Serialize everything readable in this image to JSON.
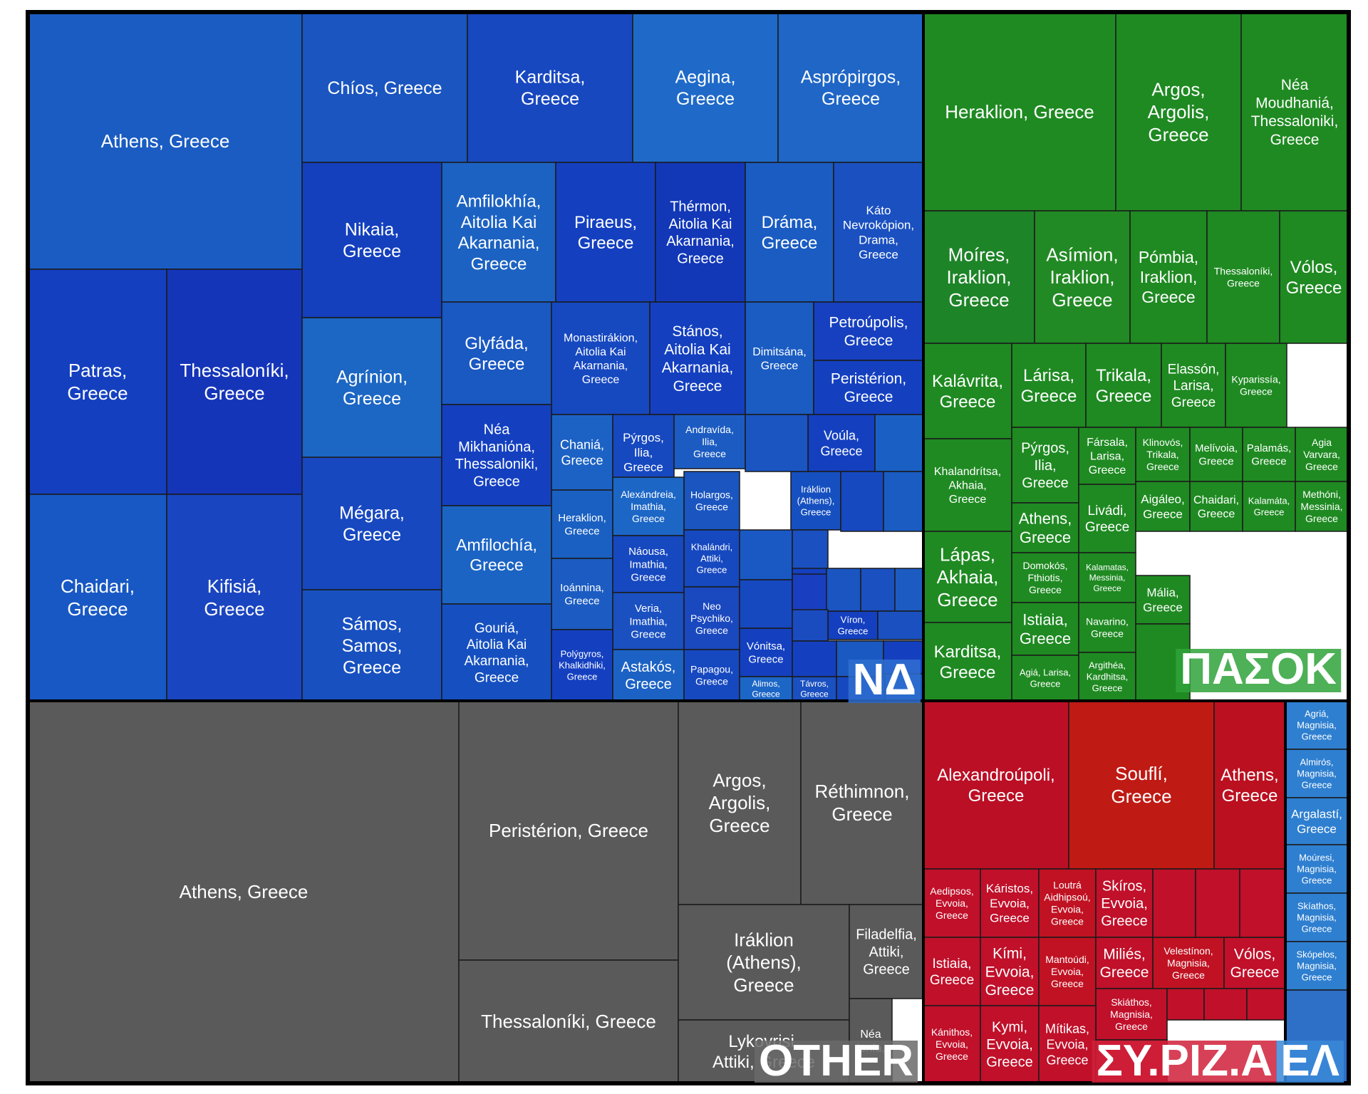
{
  "chart_data": {
    "type": "treemap",
    "groups": [
      {
        "name": "ΝΔ",
        "color": "#1f4fbf",
        "label_bg": "#2f6fd0",
        "tiles": [
          {
            "label": "Athens, Greece",
            "color": "#1a5cc2"
          },
          {
            "label": "Patras,\nGreece",
            "color": "#1440c0"
          },
          {
            "label": "Thessaloníki,\nGreece",
            "color": "#1535b8"
          },
          {
            "label": "Chaidari,\nGreece",
            "color": "#1858c4"
          },
          {
            "label": "Kifisiá,\nGreece",
            "color": "#1a45c0"
          },
          {
            "label": "Chíos, Greece",
            "color": "#1a55c0"
          },
          {
            "label": "Karditsa,\nGreece",
            "color": "#1848c0"
          },
          {
            "label": "Aegina,\nGreece",
            "color": "#1f6ac8"
          },
          {
            "label": "Asprópirgos,\nGreece",
            "color": "#1f66c6"
          },
          {
            "label": "Nikaia,\nGreece",
            "color": "#1440be"
          },
          {
            "label": "Agrínion,\nGreece",
            "color": "#1c66c4"
          },
          {
            "label": "Mégara,\nGreece",
            "color": "#1848c0"
          },
          {
            "label": "Sámos,\nSamos,\nGreece",
            "color": "#1850c0"
          },
          {
            "label": "Amfilokhía,\nAitolia Kai\nAkarnania,\nGreece",
            "color": "#1c62c2"
          },
          {
            "label": "Piraeus,\nGreece",
            "color": "#1440c0"
          },
          {
            "label": "Thérmon,\nAitolia Kai\nAkarnania,\nGreece",
            "color": "#1238b8"
          },
          {
            "label": "Dráma,\nGreece",
            "color": "#1a5cc2"
          },
          {
            "label": "Káto\nNevrokópion,\nDrama,\nGreece",
            "color": "#1a50c0"
          },
          {
            "label": "Glyfáda,\nGreece",
            "color": "#1a58c2"
          },
          {
            "label": "Monastirákion,\nAitolia Kai\nAkarnania,\nGreece",
            "color": "#1648c0"
          },
          {
            "label": "Stános,\nAitolia Kai\nAkarnania,\nGreece",
            "color": "#1440bf"
          },
          {
            "label": "Dimitsána,\nGreece",
            "color": "#1a5cc2"
          },
          {
            "label": "Petroúpolis,\nGreece",
            "color": "#1640bf"
          },
          {
            "label": "Peristérion,\nGreece",
            "color": "#1440c0"
          },
          {
            "label": "Néa\nMikhaniόna,\nThessaloniki,\nGreece",
            "color": "#1440c0"
          },
          {
            "label": "Chaniá,\nGreece",
            "color": "#1c62c4"
          },
          {
            "label": "Pýrgos,\nIlia,\nGreece",
            "color": "#1648c0"
          },
          {
            "label": "Andravída,\nIlia,\nGreece",
            "color": "#1c5cc2"
          },
          {
            "label": "Voúla,\nGreece",
            "color": "#1440c0"
          },
          {
            "label": "Amfilochía,\nGreece",
            "color": "#1c64c4"
          },
          {
            "label": "Heraklion,\nGreece",
            "color": "#1a60c2"
          },
          {
            "label": "Alexándreia,\nImathia,\nGreece",
            "color": "#1c66c6"
          },
          {
            "label": "Holargos,\nGreece",
            "color": "#1a55c0"
          },
          {
            "label": "Iráklion\n(Athens),\nGreece",
            "color": "#1650c0"
          },
          {
            "label": "Ioánnina,\nGreece",
            "color": "#1c5cc2"
          },
          {
            "label": "Náousa,\nImathia,\nGreece",
            "color": "#1648c0"
          },
          {
            "label": "Khalándri,\nAttiki,\nGreece",
            "color": "#1648c0"
          },
          {
            "label": "Gouriá,\nAitolia Kai\nAkarnania,\nGreece",
            "color": "#1650c0"
          },
          {
            "label": "Veria,\nImathia,\nGreece",
            "color": "#1a50c0"
          },
          {
            "label": "Neo\nPsychiko,\nGreece",
            "color": "#1a48bf"
          },
          {
            "label": "Polýgyros,\nKhalkidhiki,\nGreece",
            "color": "#1440c0"
          },
          {
            "label": "Astakós,\nGreece",
            "color": "#1c62c4"
          },
          {
            "label": "Papagou,\nGreece",
            "color": "#1648c0"
          },
          {
            "label": "Vónitsa,\nGreece",
            "color": "#1440c0"
          },
          {
            "label": "Víron,\nGreece",
            "color": "#1440c0"
          },
          {
            "label": "Alimos,\nGreece",
            "color": "#1c66c6"
          },
          {
            "label": "Távros,\nGreece",
            "color": "#1a50c0"
          },
          {
            "label": "",
            "color": "#1a55c2"
          },
          {
            "label": "",
            "color": "#1a60c4"
          },
          {
            "label": "",
            "color": "#1648c0"
          },
          {
            "label": "",
            "color": "#1a5cc2"
          },
          {
            "label": "",
            "color": "#1a58c4"
          },
          {
            "label": "",
            "color": "#1648c0"
          },
          {
            "label": "",
            "color": "#1a50c0"
          },
          {
            "label": "",
            "color": "#1440c0"
          },
          {
            "label": "",
            "color": "#1a3ec0"
          },
          {
            "label": "",
            "color": "#1a55c2"
          },
          {
            "label": "",
            "color": "#1a50c0"
          },
          {
            "label": "",
            "color": "#1c5cc2"
          },
          {
            "label": "",
            "color": "#1a4cc0"
          },
          {
            "label": "",
            "color": "#1a50c0"
          },
          {
            "label": "",
            "color": "#1440c0"
          },
          {
            "label": "",
            "color": "#1a58c2"
          },
          {
            "label": "",
            "color": "#1440c0"
          },
          {
            "label": "",
            "color": "#1648c0"
          },
          {
            "label": "",
            "color": "#1a58c2"
          }
        ]
      },
      {
        "name": "ΠΑΣΟΚ",
        "color": "#1e8b2a",
        "label_bg": "#2fa23a",
        "tiles": [
          {
            "label": "Heraklion, Greece",
            "color": "#1f8a22"
          },
          {
            "label": "Argos,\nArgolis,\nGreece",
            "color": "#1f8a22"
          },
          {
            "label": "Néa\nMoudhaniá,\nThessaloniki,\nGreece",
            "color": "#1f8a22"
          },
          {
            "label": "Moíres,\nIraklion,\nGreece",
            "color": "#1e8428"
          },
          {
            "label": "Asímion,\nIraklion,\nGreece",
            "color": "#228a24"
          },
          {
            "label": "Pómbia,\nIraklion,\nGreece",
            "color": "#1f8a22"
          },
          {
            "label": "Thessaloníki,\nGreece",
            "color": "#1f8a22"
          },
          {
            "label": "Vólos,\nGreece",
            "color": "#1f8a22"
          },
          {
            "label": "Kalávrita,\nGreece",
            "color": "#1f8a22"
          },
          {
            "label": "Lárisa,\nGreece",
            "color": "#1f8a22"
          },
          {
            "label": "Trikala,\nGreece",
            "color": "#1f8a22"
          },
          {
            "label": "Elassón,\nLarisa,\nGreece",
            "color": "#1f8a22"
          },
          {
            "label": "Kyparissía,\nGreece",
            "color": "#1f8a22"
          },
          {
            "label": "Khalandrítsa,\nAkhaia,\nGreece",
            "color": "#1f8a22"
          },
          {
            "label": "Pýrgos,\nIlia,\nGreece",
            "color": "#1f8a22"
          },
          {
            "label": "Fársala,\nLarisa,\nGreece",
            "color": "#1f8a22"
          },
          {
            "label": "Klinovós,\nTrikala,\nGreece",
            "color": "#1f8a22"
          },
          {
            "label": "Melívoia,\nGreece",
            "color": "#1f8a22"
          },
          {
            "label": "Palamás,\nGreece",
            "color": "#1f8a22"
          },
          {
            "label": "Agia\nVarvara,\nGreece",
            "color": "#1f8a22"
          },
          {
            "label": "Athens,\nGreece",
            "color": "#1f8a22"
          },
          {
            "label": "Livádi,\nGreece",
            "color": "#1f8a22"
          },
          {
            "label": "Aigáleo,\nGreece",
            "color": "#1f8a22"
          },
          {
            "label": "Chaidari,\nGreece",
            "color": "#1f8a22"
          },
          {
            "label": "Kalamáta,\nGreece",
            "color": "#1f8a22"
          },
          {
            "label": "Methóni,\nMessinia,\nGreece",
            "color": "#1f8a22"
          },
          {
            "label": "Lápas,\nAkhaia,\nGreece",
            "color": "#1f8a22"
          },
          {
            "label": "Domokós,\nFthiotis,\nGreece",
            "color": "#1f8a22"
          },
          {
            "label": "Kalamatas,\nMessinia,\nGreece",
            "color": "#1f8a22"
          },
          {
            "label": "Istiaia,\nGreece",
            "color": "#1f8a22"
          },
          {
            "label": "Navarino,\nGreece",
            "color": "#1f8a22"
          },
          {
            "label": "Mália,\nGreece",
            "color": "#1f8a22"
          },
          {
            "label": "Karditsa,\nGreece",
            "color": "#1f8a22"
          },
          {
            "label": "Agiá, Larisa,\nGreece",
            "color": "#1f8a22"
          },
          {
            "label": "Argithéa,\nKardhitsa,\nGreece",
            "color": "#1f8a22"
          },
          {
            "label": "",
            "color": "#1f8a22"
          }
        ]
      },
      {
        "name": "OTHER",
        "color": "#5a5a5a",
        "label_bg": "#6a6a6a",
        "tiles": [
          {
            "label": "Athens, Greece",
            "color": "#5a5a5a"
          },
          {
            "label": "Peristérion, Greece",
            "color": "#5a5a5a"
          },
          {
            "label": "Argos,\nArgolis,\nGreece",
            "color": "#5a5a5a"
          },
          {
            "label": "Réthimnon,\nGreece",
            "color": "#5a5a5a"
          },
          {
            "label": "Thessaloníki, Greece",
            "color": "#5a5a5a"
          },
          {
            "label": "Iráklion\n(Athens),\nGreece",
            "color": "#5a5a5a"
          },
          {
            "label": "Filadelfia,\nAttiki,\nGreece",
            "color": "#5a5a5a"
          },
          {
            "label": "Lykovrisi,\nAttiki, Greece",
            "color": "#5a5a5a"
          },
          {
            "label": "Néa\nIonía,",
            "color": "#5a5a5a"
          }
        ]
      },
      {
        "name": "ΣΥ.ΡΙΖ.Α",
        "color": "#c0102a",
        "label_bg": "#d0203a",
        "tiles": [
          {
            "label": "Alexandroúpoli,\nGreece",
            "color": "#bb0f25"
          },
          {
            "label": "Souflí,\nGreece",
            "color": "#bf1a14"
          },
          {
            "label": "Athens,\nGreece",
            "color": "#bb1020"
          },
          {
            "label": "Aedipsos,\nEvvoia,\nGreece",
            "color": "#c0102a"
          },
          {
            "label": "Káristos,\nEvvoia,\nGreece",
            "color": "#c0102a"
          },
          {
            "label": "Loutrá\nAidhipsoú,\nEvvoia,\nGreece",
            "color": "#c01222"
          },
          {
            "label": "Skíros,\nEvvoia,\nGreece",
            "color": "#c0102a"
          },
          {
            "label": "Istiaia,\nGreece",
            "color": "#c0102a"
          },
          {
            "label": "Kími,\nEvvoia,\nGreece",
            "color": "#c0102a"
          },
          {
            "label": "Mantoúdi,\nEvvoia,\nGreece",
            "color": "#c01222"
          },
          {
            "label": "Miliés,\nGreece",
            "color": "#c0102a"
          },
          {
            "label": "Velestínon,\nMagnisia,\nGreece",
            "color": "#c01222"
          },
          {
            "label": "Vólos,\nGreece",
            "color": "#c0102a"
          },
          {
            "label": "Skiáthos,\nMagnisia,\nGreece",
            "color": "#c0102a"
          },
          {
            "label": "Kánithos,\nEvvoia,\nGreece",
            "color": "#c0102a"
          },
          {
            "label": "Kymi,\nEvvoia,\nGreece",
            "color": "#c0102a"
          },
          {
            "label": "Mítikas,\nEvvoia,\nGreece",
            "color": "#c0102a"
          },
          {
            "label": "",
            "color": "#c0102a"
          },
          {
            "label": "",
            "color": "#c0102a"
          },
          {
            "label": "",
            "color": "#c0102a"
          },
          {
            "label": "",
            "color": "#c0102a"
          },
          {
            "label": "",
            "color": "#c0102a"
          },
          {
            "label": "",
            "color": "#c0102a"
          },
          {
            "label": "",
            "color": "#c0102a"
          }
        ]
      },
      {
        "name": "ΕΛ",
        "color": "#2e7fd0",
        "label_bg": "#3a8ad8",
        "tiles": [
          {
            "label": "Agriá,\nMagnisia,\nGreece",
            "color": "#2e7fd0"
          },
          {
            "label": "Almirós,\nMagnisia,\nGreece",
            "color": "#2e7fd0"
          },
          {
            "label": "Argalastí,\nGreece",
            "color": "#2e7fd0"
          },
          {
            "label": "Moúresi,\nMagnisia,\nGreece",
            "color": "#2e7fd0"
          },
          {
            "label": "Skíathos,\nMagnisia,\nGreece",
            "color": "#2e7fd0"
          },
          {
            "label": "Skópelos,\nMagnisia,\nGreece",
            "color": "#2e7fd0"
          },
          {
            "label": "",
            "color": "#2e6fc8"
          }
        ]
      }
    ]
  }
}
